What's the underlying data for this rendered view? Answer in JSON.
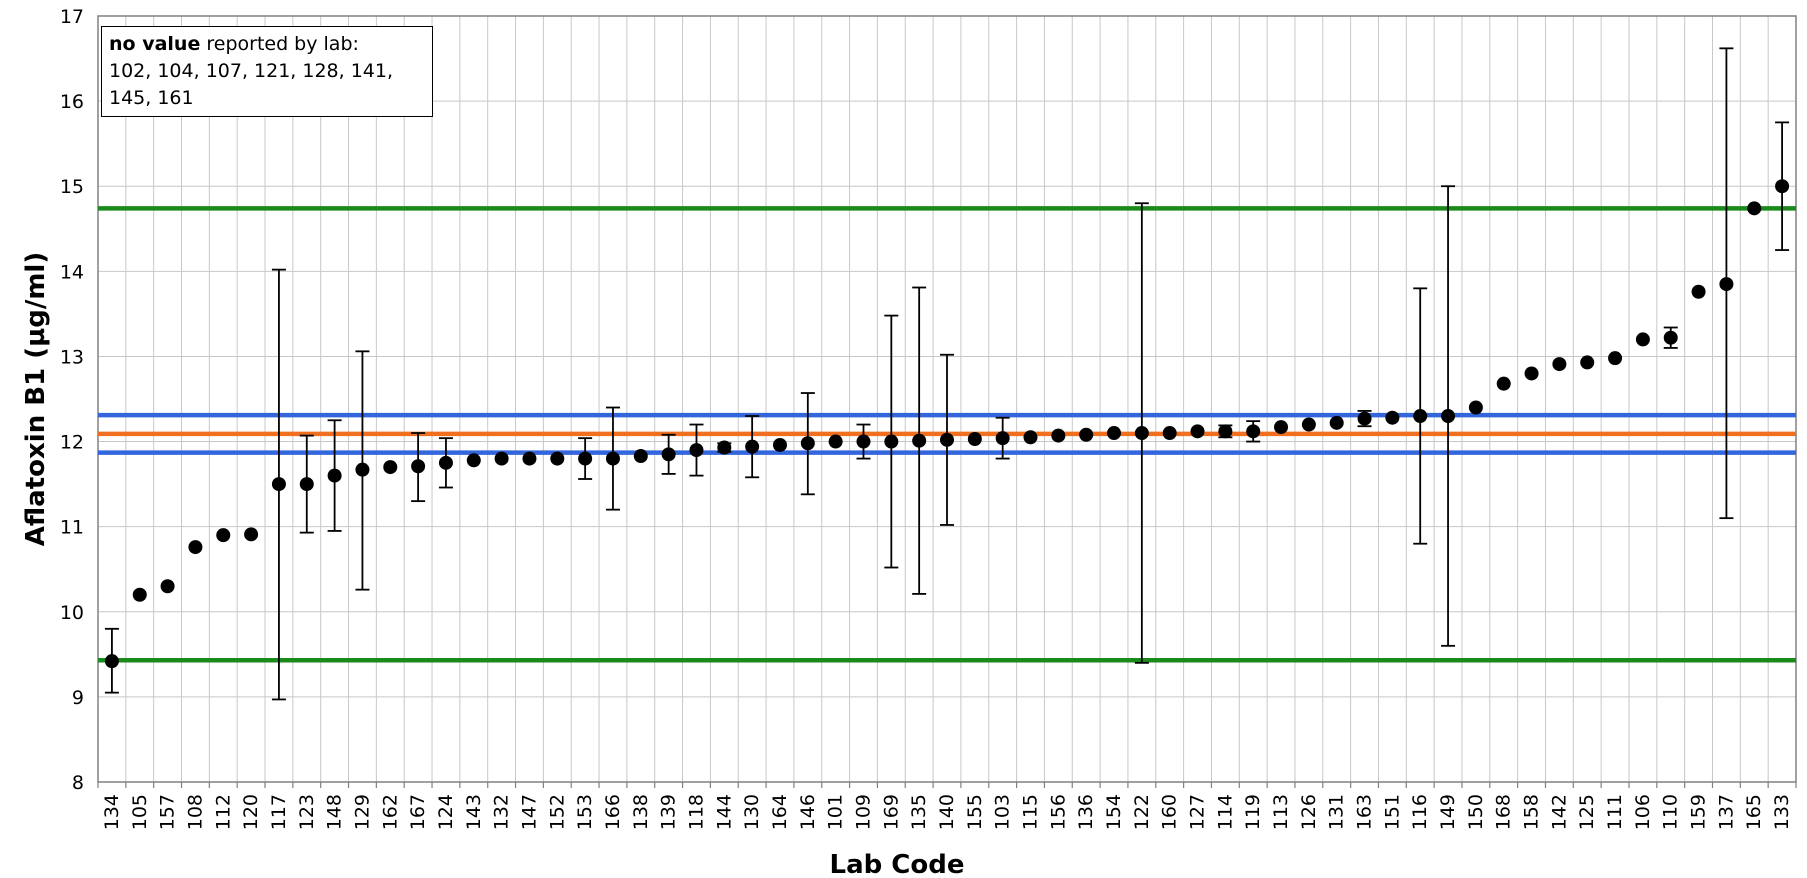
{
  "chart_data": {
    "type": "scatter",
    "xlabel": "Lab Code",
    "ylabel": "Aflatoxin B1 (µg/ml)",
    "ylim": [
      8,
      17
    ],
    "yticks": [
      8,
      9,
      10,
      11,
      12,
      13,
      14,
      15,
      16,
      17
    ],
    "grid": true,
    "categories": [
      "134",
      "105",
      "157",
      "108",
      "112",
      "120",
      "117",
      "123",
      "148",
      "129",
      "162",
      "167",
      "124",
      "143",
      "132",
      "147",
      "152",
      "153",
      "166",
      "138",
      "139",
      "118",
      "144",
      "130",
      "164",
      "146",
      "101",
      "109",
      "169",
      "135",
      "140",
      "155",
      "103",
      "115",
      "156",
      "136",
      "154",
      "122",
      "160",
      "127",
      "114",
      "119",
      "113",
      "126",
      "131",
      "163",
      "151",
      "116",
      "149",
      "150",
      "168",
      "158",
      "142",
      "125",
      "111",
      "106",
      "110",
      "159",
      "137",
      "165",
      "133"
    ],
    "values": [
      9.42,
      10.2,
      10.3,
      10.76,
      10.9,
      10.91,
      11.5,
      11.5,
      11.6,
      11.67,
      11.7,
      11.71,
      11.75,
      11.78,
      11.8,
      11.8,
      11.8,
      11.8,
      11.8,
      11.83,
      11.85,
      11.9,
      11.93,
      11.94,
      11.96,
      11.98,
      12.0,
      12.0,
      12.0,
      12.01,
      12.02,
      12.03,
      12.04,
      12.05,
      12.07,
      12.08,
      12.1,
      12.1,
      12.1,
      12.12,
      12.12,
      12.12,
      12.17,
      12.2,
      12.22,
      12.27,
      12.28,
      12.3,
      12.3,
      12.4,
      12.68,
      12.8,
      12.91,
      12.93,
      12.98,
      13.2,
      13.22,
      13.76,
      13.85,
      14.74,
      15.0
    ],
    "error_bars": [
      {
        "lab": "134",
        "low": 9.05,
        "high": 9.8
      },
      {
        "lab": "117",
        "low": 8.97,
        "high": 14.02
      },
      {
        "lab": "123",
        "low": 10.93,
        "high": 12.07
      },
      {
        "lab": "148",
        "low": 10.95,
        "high": 12.25
      },
      {
        "lab": "129",
        "low": 10.26,
        "high": 13.06
      },
      {
        "lab": "167",
        "low": 11.3,
        "high": 12.1
      },
      {
        "lab": "124",
        "low": 11.46,
        "high": 12.04
      },
      {
        "lab": "153",
        "low": 11.56,
        "high": 12.04
      },
      {
        "lab": "166",
        "low": 11.2,
        "high": 12.4
      },
      {
        "lab": "139",
        "low": 11.62,
        "high": 12.08
      },
      {
        "lab": "118",
        "low": 11.6,
        "high": 12.2
      },
      {
        "lab": "144",
        "low": 11.88,
        "high": 11.98
      },
      {
        "lab": "130",
        "low": 11.58,
        "high": 12.3
      },
      {
        "lab": "146",
        "low": 11.38,
        "high": 12.57
      },
      {
        "lab": "109",
        "low": 11.8,
        "high": 12.2
      },
      {
        "lab": "169",
        "low": 10.52,
        "high": 13.48
      },
      {
        "lab": "135",
        "low": 10.21,
        "high": 13.81
      },
      {
        "lab": "140",
        "low": 11.02,
        "high": 13.02
      },
      {
        "lab": "103",
        "low": 11.8,
        "high": 12.28
      },
      {
        "lab": "122",
        "low": 9.4,
        "high": 14.8
      },
      {
        "lab": "114",
        "low": 12.05,
        "high": 12.19
      },
      {
        "lab": "119",
        "low": 12.0,
        "high": 12.24
      },
      {
        "lab": "163",
        "low": 12.18,
        "high": 12.36
      },
      {
        "lab": "116",
        "low": 10.8,
        "high": 13.8
      },
      {
        "lab": "149",
        "low": 9.6,
        "high": 15.0
      },
      {
        "lab": "110",
        "low": 13.1,
        "high": 13.34
      },
      {
        "lab": "137",
        "low": 11.1,
        "high": 16.62
      },
      {
        "lab": "133",
        "low": 14.25,
        "high": 15.75
      }
    ],
    "reference_lines": [
      {
        "value": 14.74,
        "color": "#1a8a1a"
      },
      {
        "value": 12.31,
        "color": "#3366dd"
      },
      {
        "value": 12.09,
        "color": "#f07020"
      },
      {
        "value": 11.87,
        "color": "#3366dd"
      },
      {
        "value": 9.43,
        "color": "#1a8a1a"
      }
    ]
  },
  "note": {
    "bold": "no value",
    "rest": " reported by lab:",
    "line2": "102, 104, 107, 121, 128, 141,",
    "line3": "145, 161"
  }
}
